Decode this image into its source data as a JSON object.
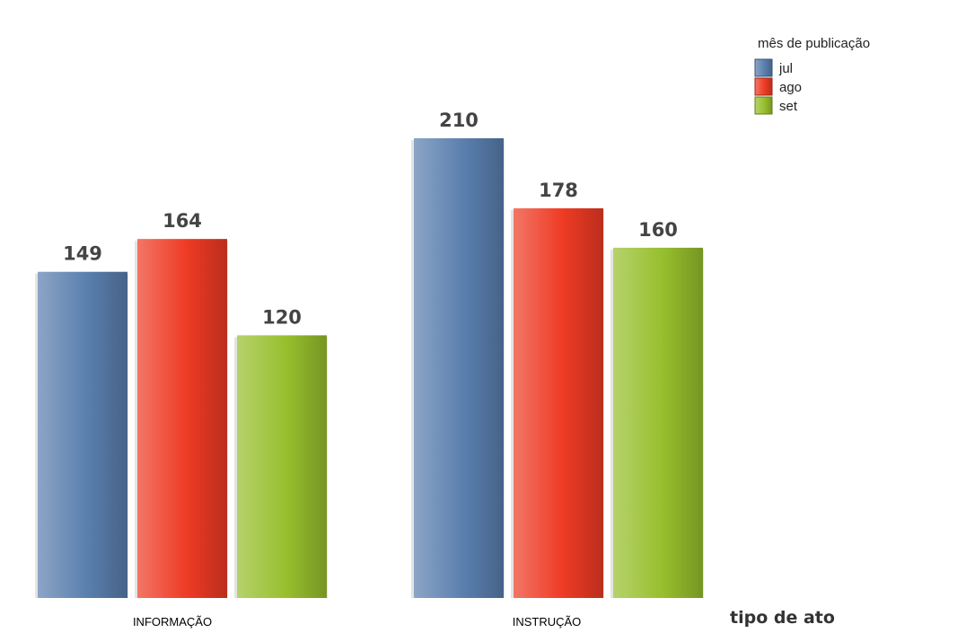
{
  "chart_data": {
    "type": "bar",
    "categories": [
      "INFORMAÇÃO",
      "INSTRUÇÃO"
    ],
    "series": [
      {
        "name": "jul",
        "values": [
          149,
          210
        ],
        "color": "#5a7fae"
      },
      {
        "name": "ago",
        "values": [
          164,
          178
        ],
        "color": "#ee3b24"
      },
      {
        "name": "set",
        "values": [
          120,
          160
        ],
        "color": "#97bf2d"
      }
    ],
    "xlabel": "tipo de ato",
    "legend_title": "mês de publicação",
    "legend_position": "top-right",
    "ylim": [
      0,
      210
    ],
    "grid": false,
    "data_labels": true
  }
}
